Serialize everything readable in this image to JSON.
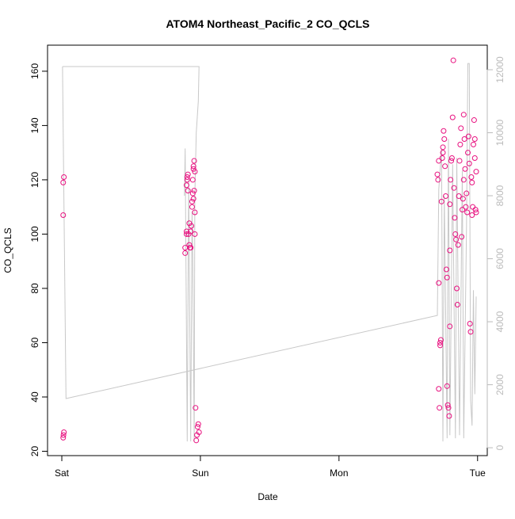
{
  "chart_data": [
    {
      "type": "scatter",
      "title": "ATOM4 Northeast_Pacific_2 CO_QCLS",
      "x_label": "Date",
      "y_label": "CO_QCLS",
      "color": "#e8107f",
      "xlim": [
        -0.103,
        3.07
      ],
      "ylim": [
        18.4,
        169.6
      ],
      "xticks": [
        {
          "value": 0,
          "label": "Sat"
        },
        {
          "value": 1,
          "label": "Sun"
        },
        {
          "value": 2,
          "label": "Mon"
        },
        {
          "value": 3,
          "label": "Tue"
        }
      ],
      "yticks": [
        20,
        40,
        60,
        80,
        100,
        120,
        140,
        160
      ],
      "x": [
        0.01,
        0.01,
        0.015,
        0.01,
        0.012,
        0.015,
        0.89,
        0.89,
        0.9,
        0.9,
        0.9,
        0.905,
        0.905,
        0.91,
        0.91,
        0.92,
        0.92,
        0.925,
        0.93,
        0.93,
        0.935,
        0.94,
        0.94,
        0.945,
        0.945,
        0.95,
        0.95,
        0.955,
        0.955,
        0.96,
        0.96,
        0.965,
        0.97,
        0.975,
        0.98,
        0.985,
        0.99,
        0.915,
        0.95,
        0.96,
        2.71,
        2.715,
        2.72,
        2.72,
        2.72,
        2.725,
        2.73,
        2.73,
        2.735,
        2.74,
        2.745,
        2.75,
        2.75,
        2.755,
        2.76,
        2.765,
        2.77,
        2.775,
        2.78,
        2.78,
        2.785,
        2.79,
        2.795,
        2.8,
        2.8,
        2.8,
        2.805,
        2.81,
        2.815,
        2.82,
        2.825,
        2.83,
        2.835,
        2.84,
        2.845,
        2.85,
        2.855,
        2.86,
        2.865,
        2.87,
        2.875,
        2.88,
        2.885,
        2.89,
        2.895,
        2.9,
        2.9,
        2.905,
        2.91,
        2.915,
        2.92,
        2.925,
        2.93,
        2.935,
        2.94,
        2.945,
        2.95,
        2.955,
        2.96,
        2.96,
        2.965,
        2.97,
        2.975,
        2.98,
        2.98,
        2.985,
        2.99,
        2.99
      ],
      "values": [
        107,
        119,
        121,
        25,
        26,
        27,
        93,
        95,
        100,
        101,
        118,
        120,
        121,
        122,
        116,
        104,
        96,
        95,
        95,
        101,
        103,
        110,
        112,
        115,
        120,
        124,
        125,
        127,
        116,
        108,
        100,
        36,
        24,
        26,
        29,
        30,
        27,
        100,
        113,
        123,
        122,
        120,
        127,
        82,
        43,
        36,
        59,
        60,
        61,
        112,
        128,
        130,
        132,
        138,
        135,
        125,
        114,
        87,
        84,
        44,
        37,
        36,
        33,
        66,
        94,
        111,
        120,
        127,
        128,
        143,
        164,
        117,
        106,
        100,
        98,
        80,
        74,
        96,
        114,
        127,
        133,
        139,
        99,
        109,
        113,
        120,
        144,
        135,
        124,
        110,
        115,
        108,
        130,
        136,
        126,
        67,
        64,
        121,
        119,
        107,
        110,
        133,
        142,
        135,
        128,
        109,
        123,
        108
      ]
    },
    {
      "type": "line",
      "axis": "y2",
      "color": "#c8c8c8",
      "y2lim": [
        -250,
        12780
      ],
      "y2ticks": [
        0,
        2000,
        4000,
        6000,
        8000,
        10000,
        12000
      ],
      "x": [
        0.005,
        0.03,
        2.71,
        2.72,
        2.74,
        2.75,
        2.76,
        2.78,
        2.79,
        2.8,
        2.82,
        2.84,
        2.85,
        2.87,
        2.89,
        2.9,
        2.92,
        2.93,
        2.94,
        2.95,
        2.96,
        2.97,
        2.98,
        2.99,
        null,
        0.005,
        0.99,
        0.985,
        0.97,
        0.96,
        0.955,
        0.945,
        0.94,
        0.93,
        0.915,
        0.905,
        0.89,
        0.885
      ],
      "values": [
        12100,
        1560,
        4200,
        8200,
        9500,
        200,
        8000,
        300,
        9800,
        400,
        9000,
        300,
        9200,
        400,
        8800,
        300,
        7000,
        12200,
        12200,
        1500,
        700,
        5000,
        1700,
        4800,
        null,
        12100,
        12100,
        11000,
        10000,
        8000,
        200,
        6000,
        7500,
        200,
        8500,
        200,
        9500,
        8000
      ]
    }
  ]
}
